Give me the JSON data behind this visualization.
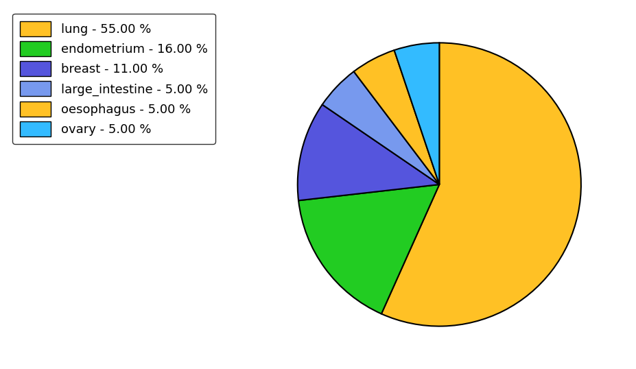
{
  "labels": [
    "lung",
    "endometrium",
    "breast",
    "large_intestine",
    "oesophagus",
    "ovary"
  ],
  "values": [
    55.0,
    16.0,
    11.0,
    5.0,
    5.0,
    5.0
  ],
  "colors": [
    "#FFC125",
    "#22CC22",
    "#5555DD",
    "#7799EE",
    "#FFC125",
    "#33BBFF"
  ],
  "legend_labels": [
    "lung - 55.00 %",
    "endometrium - 16.00 %",
    "breast - 11.00 %",
    "large_intestine - 5.00 %",
    "oesophagus - 5.00 %",
    "ovary - 5.00 %"
  ],
  "background_color": "#ffffff",
  "figsize": [
    9.28,
    5.38
  ],
  "dpi": 100,
  "startangle": 90,
  "legend_fontsize": 13
}
